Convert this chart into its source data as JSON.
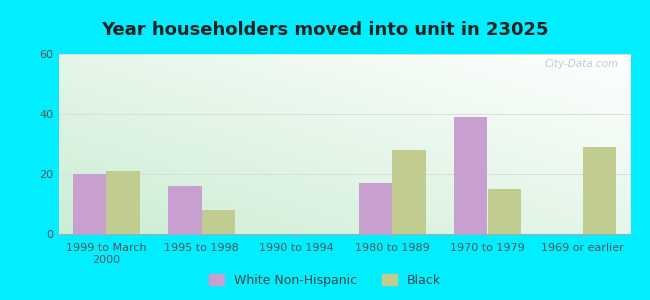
{
  "title": "Year householders moved into unit in 23025",
  "categories": [
    "1999 to March\n2000",
    "1995 to 1998",
    "1990 to 1994",
    "1980 to 1989",
    "1970 to 1979",
    "1969 or earlier"
  ],
  "white_values": [
    20,
    16,
    0,
    17,
    39,
    0
  ],
  "black_values": [
    21,
    8,
    0,
    28,
    15,
    29
  ],
  "white_color": "#c8a0d0",
  "black_color": "#c0cc90",
  "ylim": [
    0,
    60
  ],
  "yticks": [
    0,
    20,
    40,
    60
  ],
  "background_outer": "#00eeff",
  "grid_color": "#dddddd",
  "bar_width": 0.35,
  "title_fontsize": 13,
  "tick_fontsize": 8,
  "legend_fontsize": 9
}
